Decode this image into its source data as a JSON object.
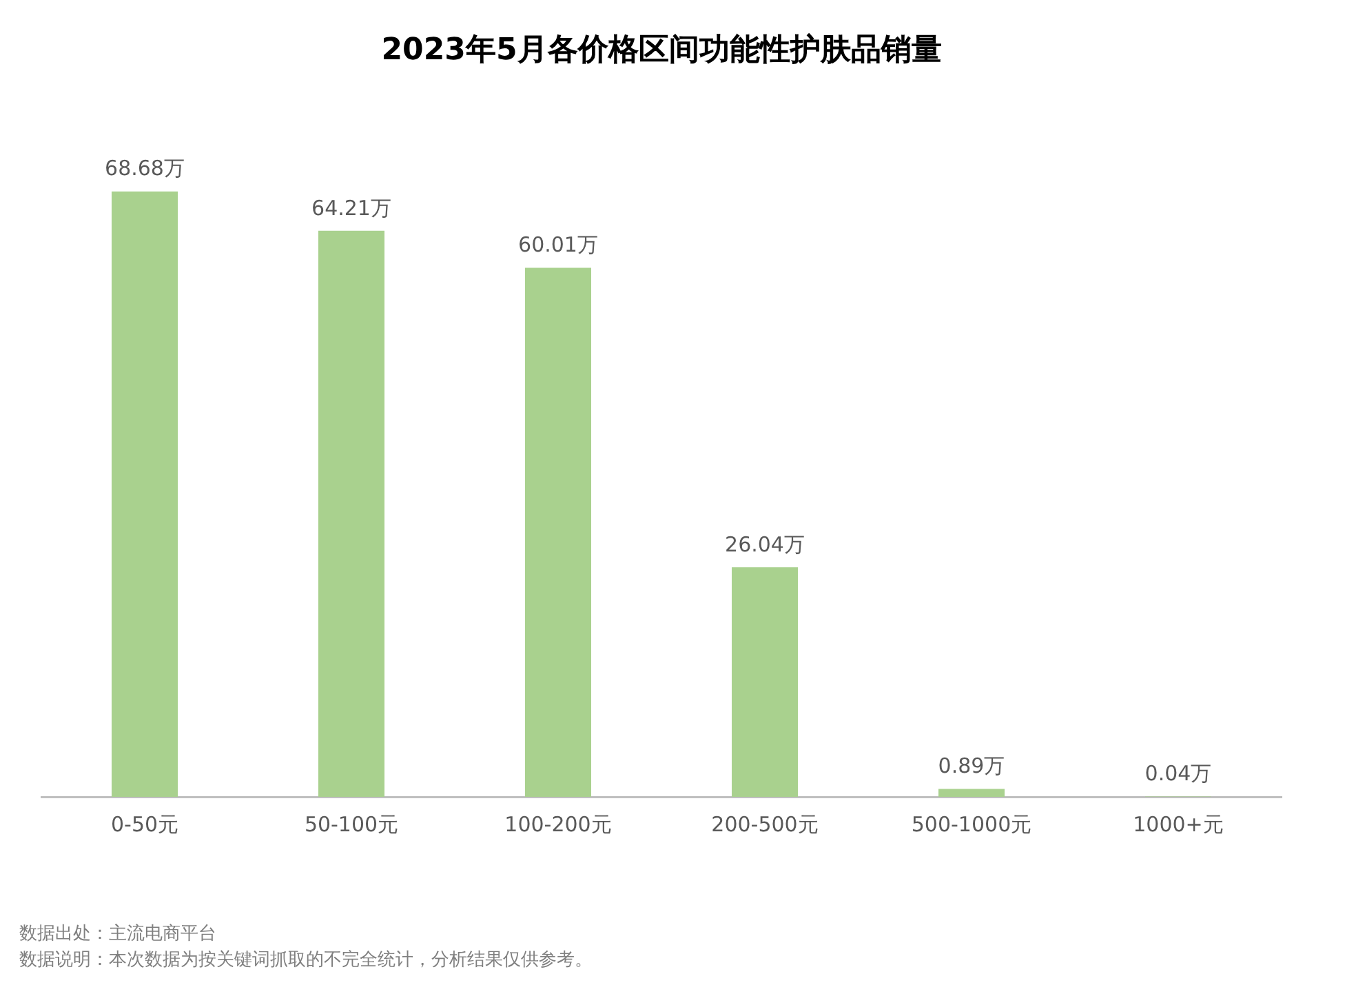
{
  "chart_data": {
    "type": "bar",
    "title": "2023年5月各价格区间功能性护肤品销量",
    "categories": [
      "0-50元",
      "50-100元",
      "100-200元",
      "200-500元",
      "500-1000元",
      "1000+元"
    ],
    "values": [
      68.68,
      64.21,
      60.01,
      26.04,
      0.89,
      0.04
    ],
    "value_labels": [
      "68.68万",
      "64.21万",
      "60.01万",
      "26.04万",
      "0.89万",
      "0.04万"
    ],
    "color": "#a9d18e",
    "grid": false,
    "legend": false,
    "tick_labels": "x",
    "annotations": [
      "数据出处：主流电商平台",
      "数据说明：本次数据为按关键词抓取的不完全统计，分析结果仅供参考。"
    ]
  }
}
